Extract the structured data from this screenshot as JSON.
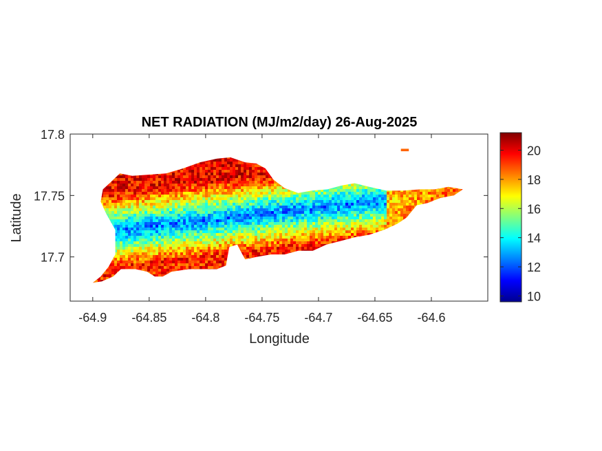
{
  "chart_data": {
    "type": "heatmap",
    "title": "NET RADIATION (MJ/m2/day) 26-Aug-2025",
    "xlabel": "Longitude",
    "ylabel": "Latitude",
    "xlim": [
      -64.92,
      -64.55
    ],
    "ylim": [
      17.664,
      17.8
    ],
    "xticks": [
      -64.9,
      -64.85,
      -64.8,
      -64.75,
      -64.7,
      -64.65,
      -64.6
    ],
    "xtick_labels": [
      "-64.9",
      "-64.85",
      "-64.8",
      "-64.75",
      "-64.7",
      "-64.65",
      "-64.6"
    ],
    "yticks": [
      17.7,
      17.75,
      17.8
    ],
    "ytick_labels": [
      "17.7",
      "17.75",
      "17.8"
    ],
    "colorbar": {
      "colormap": "jet",
      "range": [
        9.6,
        21.2
      ],
      "ticks": [
        10,
        12,
        14,
        16,
        18,
        20
      ],
      "tick_labels": [
        "10",
        "12",
        "14",
        "16",
        "18",
        "20"
      ]
    },
    "grid": false,
    "boundary_outline": [
      [
        -64.9,
        17.679
      ],
      [
        -64.893,
        17.684
      ],
      [
        -64.886,
        17.692
      ],
      [
        -64.88,
        17.702
      ],
      [
        -64.88,
        17.722
      ],
      [
        -64.888,
        17.735
      ],
      [
        -64.893,
        17.745
      ],
      [
        -64.891,
        17.755
      ],
      [
        -64.884,
        17.761
      ],
      [
        -64.876,
        17.768
      ],
      [
        -64.865,
        17.766
      ],
      [
        -64.85,
        17.767
      ],
      [
        -64.835,
        17.768
      ],
      [
        -64.82,
        17.772
      ],
      [
        -64.805,
        17.777
      ],
      [
        -64.79,
        17.78
      ],
      [
        -64.778,
        17.781
      ],
      [
        -64.765,
        17.777
      ],
      [
        -64.755,
        17.776
      ],
      [
        -64.747,
        17.772
      ],
      [
        -64.74,
        17.763
      ],
      [
        -64.73,
        17.756
      ],
      [
        -64.718,
        17.752
      ],
      [
        -64.706,
        17.754
      ],
      [
        -64.692,
        17.755
      ],
      [
        -64.68,
        17.758
      ],
      [
        -64.668,
        17.76
      ],
      [
        -64.655,
        17.757
      ],
      [
        -64.64,
        17.754
      ],
      [
        -64.625,
        17.754
      ],
      [
        -64.61,
        17.755
      ],
      [
        -64.597,
        17.755
      ],
      [
        -64.585,
        17.757
      ],
      [
        -64.572,
        17.755
      ],
      [
        -64.58,
        17.75
      ],
      [
        -64.592,
        17.748
      ],
      [
        -64.603,
        17.744
      ],
      [
        -64.613,
        17.742
      ],
      [
        -64.622,
        17.732
      ],
      [
        -64.63,
        17.727
      ],
      [
        -64.642,
        17.722
      ],
      [
        -64.655,
        17.718
      ],
      [
        -64.668,
        17.716
      ],
      [
        -64.68,
        17.713
      ],
      [
        -64.693,
        17.71
      ],
      [
        -64.705,
        17.705
      ],
      [
        -64.718,
        17.705
      ],
      [
        -64.73,
        17.702
      ],
      [
        -64.742,
        17.702
      ],
      [
        -64.755,
        17.7
      ],
      [
        -64.765,
        17.698
      ],
      [
        -64.768,
        17.703
      ],
      [
        -64.772,
        17.71
      ],
      [
        -64.779,
        17.708
      ],
      [
        -64.782,
        17.693
      ],
      [
        -64.79,
        17.69
      ],
      [
        -64.8,
        17.69
      ],
      [
        -64.815,
        17.69
      ],
      [
        -64.83,
        17.688
      ],
      [
        -64.838,
        17.684
      ],
      [
        -64.845,
        17.684
      ],
      [
        -64.852,
        17.688
      ],
      [
        -64.862,
        17.69
      ],
      [
        -64.875,
        17.69
      ],
      [
        -64.882,
        17.684
      ],
      [
        -64.892,
        17.68
      ]
    ],
    "islet_outline": [
      [
        -64.627,
        17.788
      ],
      [
        -64.62,
        17.788
      ],
      [
        -64.62,
        17.786
      ],
      [
        -64.627,
        17.786
      ]
    ],
    "value_pattern": {
      "description_values": [
        {
          "zone": "north-coast",
          "approx_value": 19.5
        },
        {
          "zone": "central-band",
          "approx_value": 12.5
        },
        {
          "zone": "south-coast",
          "approx_value": 19.0
        },
        {
          "zone": "east-end",
          "approx_value": 17.5
        }
      ]
    }
  }
}
